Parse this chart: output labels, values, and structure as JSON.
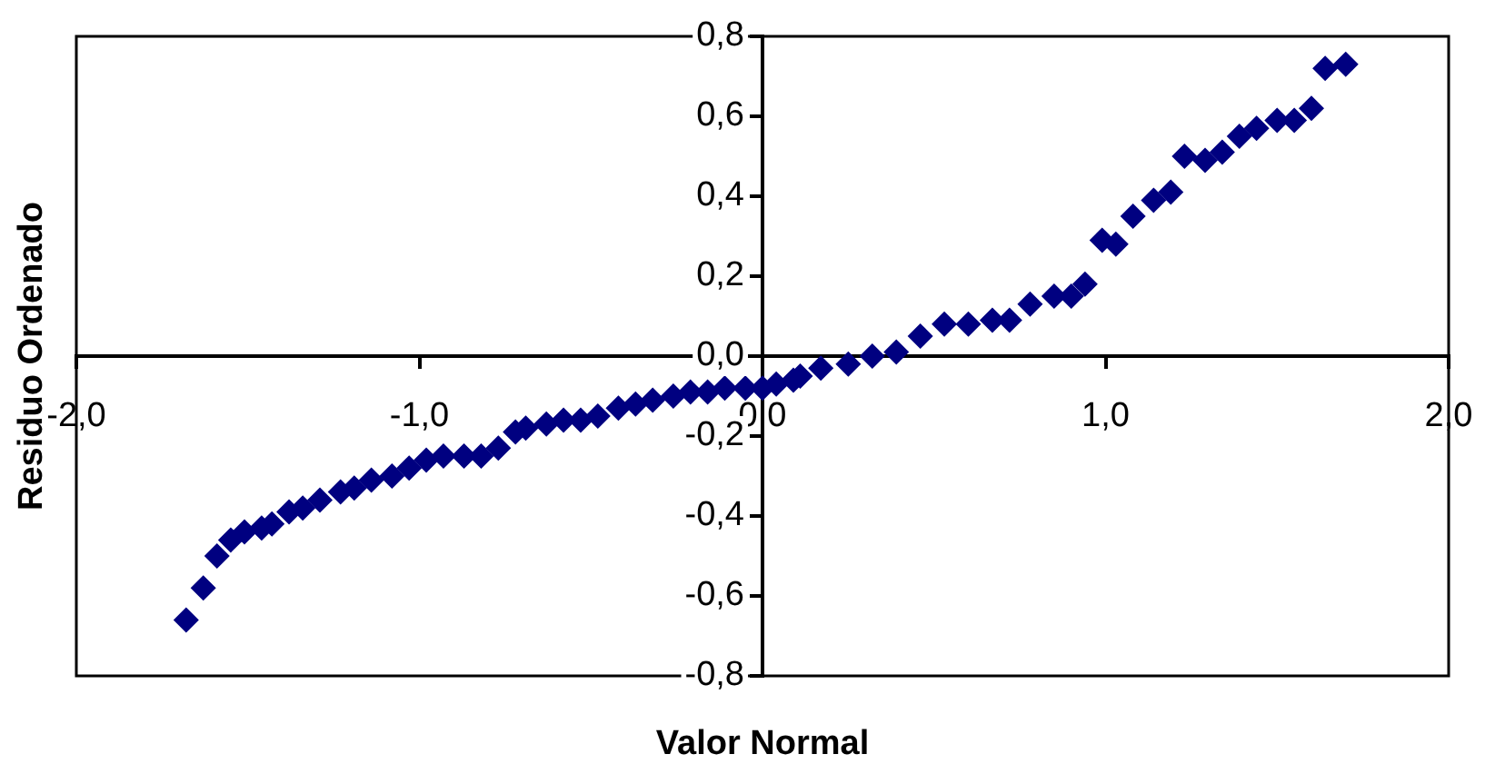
{
  "chart_data": {
    "type": "scatter",
    "xlabel": "Valor Normal",
    "ylabel": "Residuo Ordenado",
    "marker": "diamond",
    "grid": false,
    "legend": false,
    "xlim": [
      -2,
      2
    ],
    "ylim": [
      -0.8,
      0.8
    ],
    "xticks": [
      {
        "value": -2,
        "label": "-2,0"
      },
      {
        "value": -1,
        "label": "-1,0"
      },
      {
        "value": 0,
        "label": "0,0"
      },
      {
        "value": 1,
        "label": "1,0"
      },
      {
        "value": 2,
        "label": "2,0"
      }
    ],
    "yticks": [
      {
        "value": -0.8,
        "label": "-0,8"
      },
      {
        "value": -0.6,
        "label": "-0,6"
      },
      {
        "value": -0.4,
        "label": "-0,4"
      },
      {
        "value": -0.2,
        "label": "-0,2"
      },
      {
        "value": 0,
        "label": "0,0"
      },
      {
        "value": 0.2,
        "label": "0,2"
      },
      {
        "value": 0.4,
        "label": "0,4"
      },
      {
        "value": 0.6,
        "label": "0,6"
      },
      {
        "value": 0.8,
        "label": "0,8"
      }
    ],
    "series": [
      {
        "color": "#000080",
        "x": [
          -1.68,
          -1.63,
          -1.59,
          -1.55,
          -1.51,
          -1.46,
          -1.43,
          -1.38,
          -1.34,
          -1.29,
          -1.23,
          -1.19,
          -1.14,
          -1.08,
          -1.03,
          -0.98,
          -0.93,
          -0.87,
          -0.82,
          -0.77,
          -0.72,
          -0.69,
          -0.63,
          -0.58,
          -0.53,
          -0.48,
          -0.42,
          -0.37,
          -0.32,
          -0.26,
          -0.21,
          -0.16,
          -0.11,
          -0.05,
          0.0,
          0.04,
          0.09,
          0.11,
          0.17,
          0.25,
          0.32,
          0.39,
          0.46,
          0.53,
          0.6,
          0.67,
          0.72,
          0.78,
          0.85,
          0.9,
          0.94,
          0.99,
          1.03,
          1.08,
          1.14,
          1.19,
          1.23,
          1.29,
          1.34,
          1.39,
          1.44,
          1.5,
          1.55,
          1.6,
          1.64,
          1.7
        ],
        "values": [
          -0.66,
          -0.58,
          -0.5,
          -0.46,
          -0.44,
          -0.43,
          -0.42,
          -0.39,
          -0.38,
          -0.36,
          -0.34,
          -0.33,
          -0.31,
          -0.3,
          -0.28,
          -0.26,
          -0.25,
          -0.25,
          -0.25,
          -0.23,
          -0.19,
          -0.18,
          -0.17,
          -0.16,
          -0.16,
          -0.15,
          -0.13,
          -0.12,
          -0.11,
          -0.1,
          -0.09,
          -0.09,
          -0.08,
          -0.08,
          -0.08,
          -0.07,
          -0.06,
          -0.05,
          -0.03,
          -0.02,
          0.0,
          0.01,
          0.05,
          0.08,
          0.08,
          0.09,
          0.09,
          0.13,
          0.15,
          0.15,
          0.18,
          0.29,
          0.28,
          0.35,
          0.39,
          0.41,
          0.5,
          0.49,
          0.51,
          0.55,
          0.57,
          0.59,
          0.59,
          0.62,
          0.72,
          0.73
        ]
      }
    ]
  }
}
